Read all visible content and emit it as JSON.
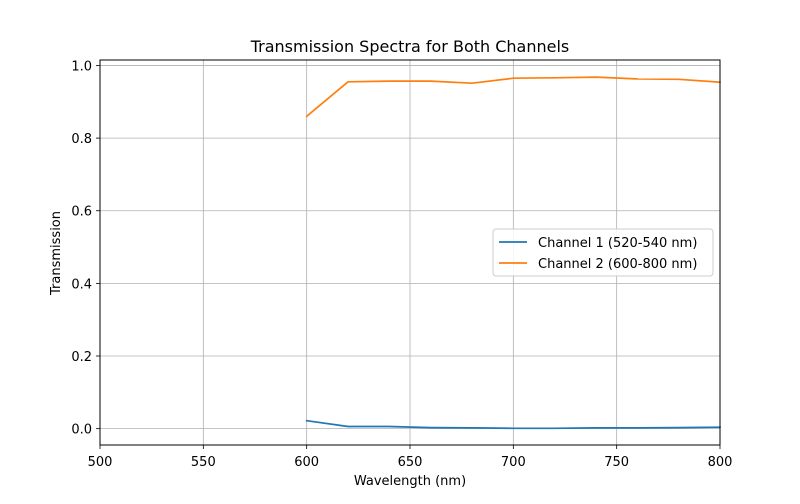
{
  "chart_data": {
    "type": "line",
    "title": "Transmission Spectra for Both Channels",
    "xlabel": "Wavelength (nm)",
    "ylabel": "Transmission",
    "xlim": [
      500,
      800
    ],
    "ylim": [
      -0.045,
      1.015
    ],
    "xticks": [
      500,
      550,
      600,
      650,
      700,
      750,
      800
    ],
    "yticks": [
      0.0,
      0.2,
      0.4,
      0.6,
      0.8,
      1.0
    ],
    "xtick_labels": [
      "500",
      "550",
      "600",
      "650",
      "700",
      "750",
      "800"
    ],
    "ytick_labels": [
      "0.0",
      "0.2",
      "0.4",
      "0.6",
      "0.8",
      "1.0"
    ],
    "grid": true,
    "legend_position": "center-right",
    "series": [
      {
        "name": "Channel 1 (520-540 nm)",
        "color": "#1f77b4",
        "x": [
          600,
          620,
          640,
          660,
          680,
          700,
          720,
          740,
          760,
          780,
          800
        ],
        "y": [
          0.022,
          0.006,
          0.006,
          0.003,
          0.002,
          0.001,
          0.001,
          0.002,
          0.002,
          0.003,
          0.004
        ]
      },
      {
        "name": "Channel 2 (600-800 nm)",
        "color": "#ff7f0e",
        "x": [
          600,
          620,
          640,
          660,
          680,
          700,
          720,
          740,
          760,
          780,
          800
        ],
        "y": [
          0.86,
          0.955,
          0.957,
          0.957,
          0.951,
          0.965,
          0.966,
          0.968,
          0.963,
          0.962,
          0.954
        ]
      }
    ]
  }
}
